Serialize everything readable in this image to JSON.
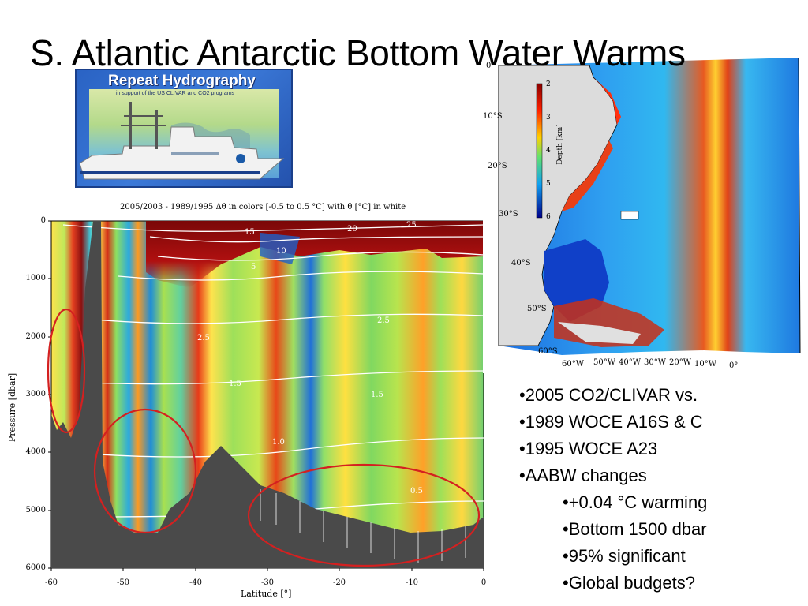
{
  "title": "S. Atlantic Antarctic Bottom Water Warms",
  "logo": {
    "title": "Repeat Hydrography",
    "subtitle": "in support of the US CLIVAR and CO2 programs"
  },
  "section_plot": {
    "title": "2005/2003 - 1989/1995 Δθ in colors [-0.5 to 0.5 °C] with θ [°C] in white",
    "ylabel": "Pressure [dbar]",
    "xlabel": "Latitude [°]",
    "yticks": [
      "0",
      "1000",
      "2000",
      "3000",
      "4000",
      "5000",
      "6000"
    ],
    "xticks": [
      "-60",
      "-50",
      "-40",
      "-30",
      "-20",
      "-10",
      "0"
    ],
    "contour_labels": [
      "15",
      "20",
      "25",
      "10",
      "5",
      "2.5",
      "2.5",
      "1.5",
      "1.5",
      "0.5",
      "1.0"
    ]
  },
  "map": {
    "lat_labels": [
      "0°",
      "10°S",
      "20°S",
      "30°S",
      "40°S",
      "50°S",
      "60°S"
    ],
    "lon_labels": [
      "60°W",
      "50°W",
      "40°W",
      "30°W",
      "20°W",
      "10°W",
      "0°"
    ],
    "colorbar_label": "Depth [km]",
    "colorbar_ticks": [
      "2",
      "3",
      "4",
      "5",
      "6"
    ]
  },
  "bullets": [
    {
      "text": "•2005 CO2/CLIVAR vs.",
      "level": 1
    },
    {
      "text": "•1989 WOCE A16S & C",
      "level": 1
    },
    {
      "text": "•1995 WOCE A23",
      "level": 1
    },
    {
      "text": "•AABW changes",
      "level": 1
    },
    {
      "text": "•+0.04 °C warming",
      "level": 2
    },
    {
      "text": "•Bottom 1500 dbar",
      "level": 2
    },
    {
      "text": "•95% significant",
      "level": 2
    },
    {
      "text": "•Global budgets?",
      "level": 2
    }
  ],
  "colors": {
    "highlight_circle": "#d42020",
    "bathymetry": "#4a4a4a"
  }
}
